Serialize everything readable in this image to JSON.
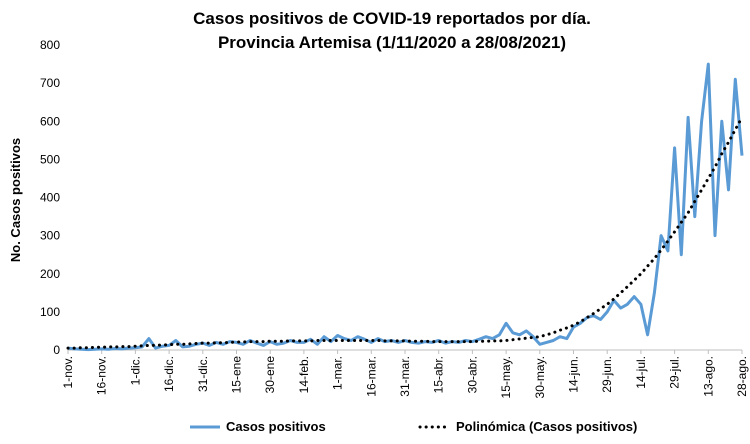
{
  "chart_data": {
    "type": "line",
    "title": [
      "Casos positivos de COVID-19 reportados por día.",
      "Provincia Artemisa (1/11/2020 a 28/08/2021)"
    ],
    "y_label": "No. Casos positivos",
    "categories": [
      "1-nov.",
      null,
      null,
      null,
      null,
      "16-nov.",
      null,
      null,
      null,
      null,
      "1-dic.",
      null,
      null,
      null,
      null,
      "16-dic.",
      null,
      null,
      null,
      null,
      "31-dic.",
      null,
      null,
      null,
      null,
      "15-ene",
      null,
      null,
      null,
      null,
      "30-ene",
      null,
      null,
      null,
      null,
      "14-feb.",
      null,
      null,
      null,
      null,
      "1-mar.",
      null,
      null,
      null,
      null,
      "16-mar.",
      null,
      null,
      null,
      null,
      "31-mar.",
      null,
      null,
      null,
      null,
      "15-abr.",
      null,
      null,
      null,
      null,
      "30-abr.",
      null,
      null,
      null,
      null,
      "15-may.",
      null,
      null,
      null,
      null,
      "30-may.",
      null,
      null,
      null,
      null,
      "14-jun.",
      null,
      null,
      null,
      null,
      "29-jun.",
      null,
      null,
      null,
      null,
      "14-jul.",
      null,
      null,
      null,
      null,
      "29-jul.",
      null,
      null,
      null,
      null,
      "13-ago.",
      null,
      null,
      null,
      null,
      "28-ago."
    ],
    "series": [
      {
        "name": "Casos positivos",
        "color": "#5b9bd5",
        "style": "solid",
        "values": [
          5,
          3,
          2,
          1,
          2,
          3,
          2,
          4,
          3,
          5,
          6,
          8,
          30,
          5,
          10,
          12,
          25,
          8,
          10,
          15,
          18,
          12,
          20,
          15,
          22,
          20,
          15,
          25,
          18,
          12,
          22,
          15,
          18,
          25,
          20,
          20,
          28,
          15,
          35,
          22,
          38,
          30,
          25,
          35,
          28,
          20,
          30,
          22,
          25,
          20,
          25,
          20,
          18,
          22,
          20,
          25,
          18,
          22,
          20,
          25,
          22,
          28,
          35,
          30,
          40,
          70,
          45,
          40,
          50,
          35,
          15,
          20,
          25,
          35,
          30,
          60,
          70,
          85,
          90,
          80,
          100,
          130,
          110,
          120,
          140,
          120,
          40,
          150,
          300,
          260,
          530,
          250,
          610,
          350,
          600,
          750,
          300,
          600,
          420,
          710,
          510
        ]
      },
      {
        "name": "Polinómica (Casos positivos)",
        "color": "#000000",
        "style": "dotted",
        "values": [
          5,
          5,
          6,
          6,
          7,
          7,
          8,
          8,
          9,
          9,
          10,
          11,
          12,
          12,
          13,
          14,
          15,
          15,
          16,
          17,
          18,
          18,
          19,
          19,
          20,
          21,
          21,
          22,
          22,
          22,
          23,
          23,
          23,
          24,
          24,
          24,
          24,
          25,
          25,
          25,
          25,
          25,
          25,
          25,
          25,
          25,
          25,
          24,
          24,
          24,
          24,
          23,
          23,
          23,
          22,
          22,
          22,
          22,
          22,
          22,
          22,
          23,
          23,
          24,
          24,
          25,
          27,
          29,
          31,
          33,
          35,
          40,
          45,
          52,
          58,
          65,
          74,
          85,
          96,
          108,
          120,
          134,
          150,
          166,
          183,
          200,
          220,
          240,
          262,
          286,
          310,
          335,
          360,
          390,
          420,
          450,
          480,
          515,
          545,
          578,
          610
        ]
      }
    ],
    "ylim": [
      0,
      800
    ],
    "yticks": [
      0,
      100,
      200,
      300,
      400,
      500,
      600,
      700,
      800
    ],
    "grid": false,
    "legend": "bottom"
  }
}
